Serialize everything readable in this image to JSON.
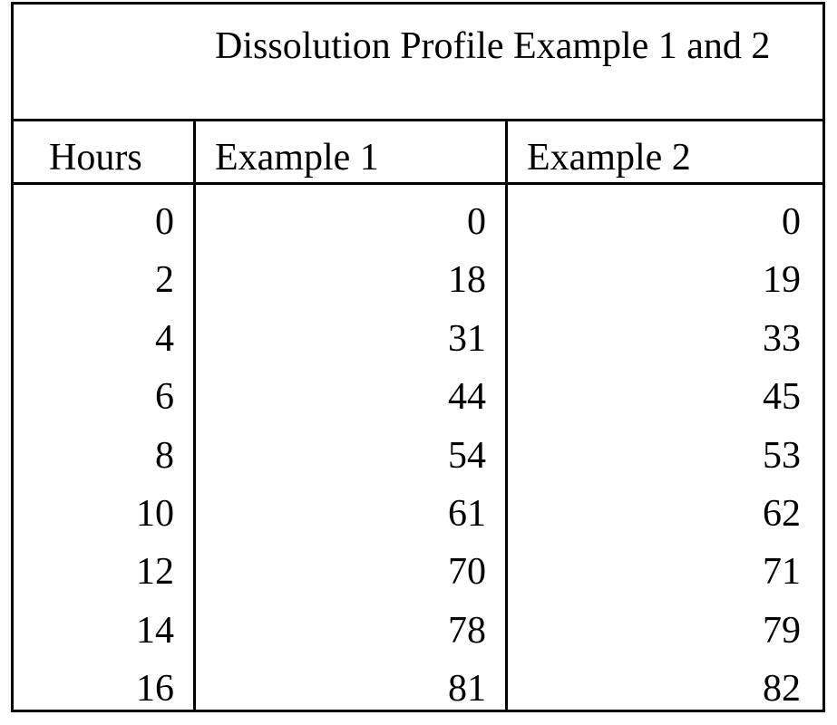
{
  "table": {
    "title": "Dissolution Profile Example 1 and 2",
    "headers": {
      "hours": "Hours",
      "example1": "Example 1",
      "example2": "Example 2"
    },
    "rows": [
      {
        "hours": "0",
        "example1": "0",
        "example2": "0"
      },
      {
        "hours": "2",
        "example1": "18",
        "example2": "19"
      },
      {
        "hours": "4",
        "example1": "31",
        "example2": "33"
      },
      {
        "hours": "6",
        "example1": "44",
        "example2": "45"
      },
      {
        "hours": "8",
        "example1": "54",
        "example2": "53"
      },
      {
        "hours": "10",
        "example1": "61",
        "example2": "62"
      },
      {
        "hours": "12",
        "example1": "70",
        "example2": "71"
      },
      {
        "hours": "14",
        "example1": "78",
        "example2": "79"
      },
      {
        "hours": "16",
        "example1": "81",
        "example2": "82"
      }
    ]
  },
  "colors": {
    "border": "#000000",
    "text": "#000000",
    "background": "#ffffff"
  }
}
